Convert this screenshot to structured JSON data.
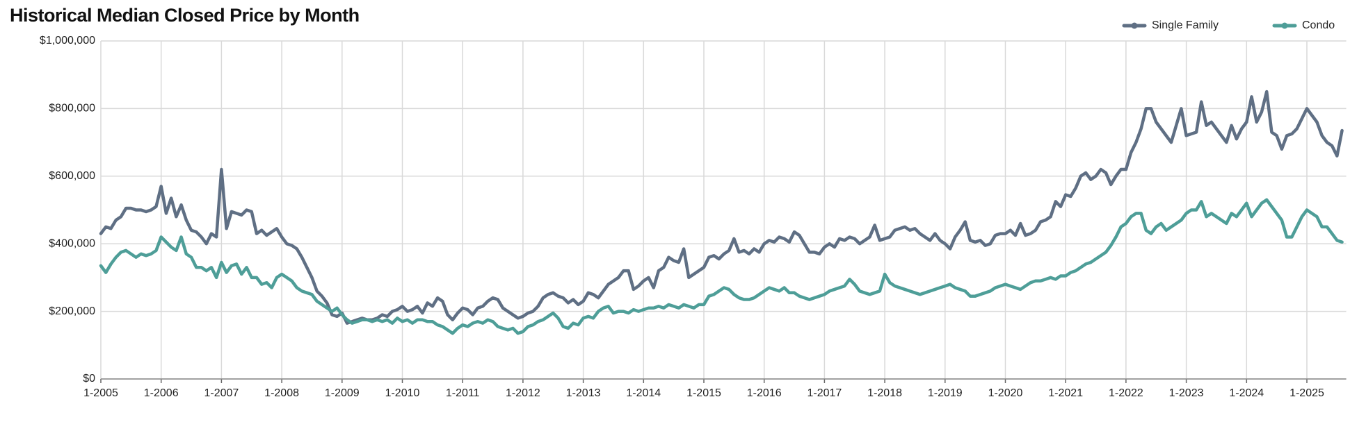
{
  "chart_data": {
    "type": "line",
    "title": "Historical Median Closed Price by Month",
    "categories": [
      "1-2005",
      null,
      null,
      null,
      null,
      null,
      null,
      null,
      null,
      null,
      null,
      null,
      "1-2006",
      null,
      null,
      null,
      null,
      null,
      null,
      null,
      null,
      null,
      null,
      null,
      "1-2007",
      null,
      null,
      null,
      null,
      null,
      null,
      null,
      null,
      null,
      null,
      null,
      "1-2008",
      null,
      null,
      null,
      null,
      null,
      null,
      null,
      null,
      null,
      null,
      null,
      "1-2009",
      null,
      null,
      null,
      null,
      null,
      null,
      null,
      null,
      null,
      null,
      null,
      "1-2010",
      null,
      null,
      null,
      null,
      null,
      null,
      null,
      null,
      null,
      null,
      null,
      "1-2011",
      null,
      null,
      null,
      null,
      null,
      null,
      null,
      null,
      null,
      null,
      null,
      "1-2012",
      null,
      null,
      null,
      null,
      null,
      null,
      null,
      null,
      null,
      null,
      null,
      "1-2013",
      null,
      null,
      null,
      null,
      null,
      null,
      null,
      null,
      null,
      null,
      null,
      "1-2014",
      null,
      null,
      null,
      null,
      null,
      null,
      null,
      null,
      null,
      null,
      null,
      "1-2015",
      null,
      null,
      null,
      null,
      null,
      null,
      null,
      null,
      null,
      null,
      null,
      "1-2016",
      null,
      null,
      null,
      null,
      null,
      null,
      null,
      null,
      null,
      null,
      null,
      "1-2017",
      null,
      null,
      null,
      null,
      null,
      null,
      null,
      null,
      null,
      null,
      null,
      "1-2018",
      null,
      null,
      null,
      null,
      null,
      null,
      null,
      null,
      null,
      null,
      null,
      "1-2019",
      null,
      null,
      null,
      null,
      null,
      null,
      null,
      null,
      null,
      null,
      null,
      "1-2020",
      null,
      null,
      null,
      null,
      null,
      null,
      null,
      null,
      null,
      null,
      null,
      "1-2021",
      null,
      null,
      null,
      null,
      null,
      null,
      null,
      null,
      null,
      null,
      null,
      "1-2022",
      null,
      null,
      null,
      null,
      null,
      null,
      null,
      null,
      null,
      null,
      null,
      "1-2023",
      null,
      null,
      null,
      null,
      null,
      null,
      null,
      null,
      null,
      null,
      null,
      "1-2024",
      null,
      null,
      null,
      null,
      null,
      null,
      null,
      null,
      null,
      null,
      null,
      "1-2025",
      null,
      null,
      null,
      null,
      null,
      null,
      null
    ],
    "series": [
      {
        "name": "Single Family",
        "color": "#5f6f84",
        "values": [
          430000,
          450000,
          445000,
          470000,
          480000,
          505000,
          505000,
          500000,
          500000,
          495000,
          500000,
          510000,
          570000,
          490000,
          535000,
          480000,
          515000,
          470000,
          440000,
          435000,
          420000,
          400000,
          430000,
          420000,
          620000,
          445000,
          495000,
          490000,
          485000,
          500000,
          495000,
          430000,
          440000,
          425000,
          435000,
          445000,
          420000,
          400000,
          395000,
          385000,
          360000,
          330000,
          300000,
          260000,
          245000,
          225000,
          190000,
          185000,
          195000,
          165000,
          170000,
          175000,
          180000,
          175000,
          175000,
          180000,
          190000,
          185000,
          200000,
          205000,
          215000,
          200000,
          205000,
          215000,
          195000,
          225000,
          215000,
          240000,
          230000,
          190000,
          175000,
          195000,
          210000,
          205000,
          190000,
          210000,
          215000,
          230000,
          240000,
          235000,
          210000,
          200000,
          190000,
          180000,
          185000,
          195000,
          200000,
          215000,
          240000,
          250000,
          255000,
          245000,
          240000,
          225000,
          235000,
          220000,
          230000,
          255000,
          250000,
          240000,
          260000,
          280000,
          290000,
          300000,
          320000,
          320000,
          265000,
          275000,
          290000,
          300000,
          270000,
          320000,
          330000,
          360000,
          350000,
          345000,
          385000,
          300000,
          310000,
          320000,
          330000,
          360000,
          365000,
          355000,
          370000,
          380000,
          415000,
          375000,
          380000,
          370000,
          385000,
          375000,
          400000,
          410000,
          405000,
          420000,
          415000,
          405000,
          435000,
          425000,
          400000,
          375000,
          375000,
          370000,
          390000,
          400000,
          390000,
          415000,
          410000,
          420000,
          415000,
          400000,
          410000,
          420000,
          455000,
          410000,
          415000,
          420000,
          440000,
          445000,
          450000,
          440000,
          445000,
          430000,
          420000,
          410000,
          430000,
          410000,
          400000,
          385000,
          420000,
          440000,
          465000,
          410000,
          405000,
          410000,
          395000,
          400000,
          425000,
          430000,
          430000,
          440000,
          425000,
          460000,
          425000,
          430000,
          440000,
          465000,
          470000,
          480000,
          525000,
          510000,
          545000,
          540000,
          565000,
          600000,
          610000,
          590000,
          600000,
          620000,
          610000,
          575000,
          600000,
          620000,
          620000,
          670000,
          700000,
          740000,
          800000,
          800000,
          760000,
          740000,
          720000,
          700000,
          750000,
          800000,
          720000,
          725000,
          730000,
          820000,
          750000,
          760000,
          740000,
          720000,
          700000,
          750000,
          710000,
          740000,
          760000,
          835000,
          760000,
          790000,
          850000,
          730000,
          720000,
          680000,
          720000,
          725000,
          740000,
          770000,
          800000,
          780000,
          760000,
          720000,
          700000,
          690000,
          660000,
          735000
        ]
      },
      {
        "name": "Condo",
        "color": "#4e9e98",
        "values": [
          335000,
          315000,
          340000,
          360000,
          375000,
          380000,
          370000,
          360000,
          370000,
          365000,
          370000,
          380000,
          420000,
          405000,
          390000,
          380000,
          420000,
          370000,
          360000,
          330000,
          330000,
          320000,
          330000,
          300000,
          345000,
          315000,
          335000,
          340000,
          310000,
          330000,
          300000,
          300000,
          280000,
          285000,
          270000,
          300000,
          310000,
          300000,
          290000,
          270000,
          260000,
          255000,
          250000,
          230000,
          220000,
          210000,
          200000,
          210000,
          190000,
          175000,
          165000,
          170000,
          175000,
          175000,
          170000,
          175000,
          170000,
          175000,
          165000,
          180000,
          170000,
          175000,
          165000,
          175000,
          175000,
          170000,
          170000,
          160000,
          155000,
          145000,
          135000,
          150000,
          160000,
          155000,
          165000,
          170000,
          165000,
          175000,
          170000,
          155000,
          150000,
          145000,
          150000,
          135000,
          140000,
          155000,
          160000,
          170000,
          175000,
          185000,
          195000,
          180000,
          155000,
          150000,
          165000,
          160000,
          180000,
          185000,
          180000,
          200000,
          210000,
          215000,
          195000,
          200000,
          200000,
          195000,
          205000,
          200000,
          205000,
          210000,
          210000,
          215000,
          210000,
          220000,
          215000,
          210000,
          220000,
          215000,
          210000,
          220000,
          220000,
          245000,
          250000,
          260000,
          270000,
          265000,
          250000,
          240000,
          235000,
          235000,
          240000,
          250000,
          260000,
          270000,
          265000,
          260000,
          270000,
          255000,
          255000,
          245000,
          240000,
          235000,
          240000,
          245000,
          250000,
          260000,
          265000,
          270000,
          275000,
          295000,
          280000,
          260000,
          255000,
          250000,
          255000,
          260000,
          310000,
          285000,
          275000,
          270000,
          265000,
          260000,
          255000,
          250000,
          255000,
          260000,
          265000,
          270000,
          275000,
          280000,
          270000,
          265000,
          260000,
          245000,
          245000,
          250000,
          255000,
          260000,
          270000,
          275000,
          280000,
          275000,
          270000,
          265000,
          275000,
          285000,
          290000,
          290000,
          295000,
          300000,
          295000,
          305000,
          305000,
          315000,
          320000,
          330000,
          340000,
          345000,
          355000,
          365000,
          375000,
          395000,
          420000,
          450000,
          460000,
          480000,
          490000,
          490000,
          440000,
          430000,
          450000,
          460000,
          440000,
          450000,
          460000,
          470000,
          490000,
          500000,
          500000,
          525000,
          480000,
          490000,
          480000,
          470000,
          460000,
          490000,
          480000,
          500000,
          520000,
          480000,
          500000,
          520000,
          530000,
          510000,
          490000,
          470000,
          420000,
          420000,
          450000,
          480000,
          500000,
          490000,
          480000,
          450000,
          450000,
          430000,
          410000,
          405000
        ]
      }
    ],
    "ylim": [
      0,
      1000000
    ],
    "yticks": [
      {
        "value": 0,
        "label": "$0"
      },
      {
        "value": 200000,
        "label": "$200,000"
      },
      {
        "value": 400000,
        "label": "$400,000"
      },
      {
        "value": 600000,
        "label": "$600,000"
      },
      {
        "value": 800000,
        "label": "$800,000"
      },
      {
        "value": 1000000,
        "label": "$1,000,000"
      }
    ],
    "grid": true,
    "legend": "top-right"
  }
}
